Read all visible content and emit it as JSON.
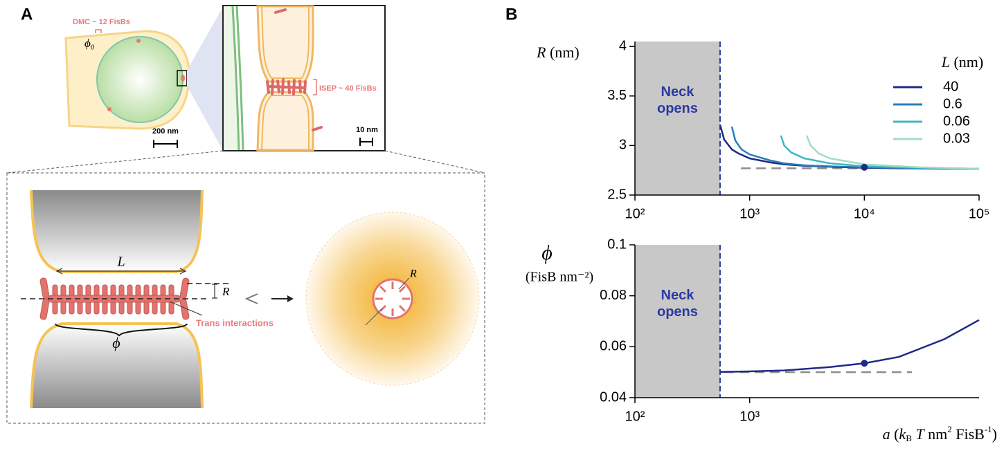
{
  "panel_labels": [
    "A",
    "B"
  ],
  "diagram": {
    "dmc_label": "DMC ~ 12 FisBs",
    "phi0": "ϕ₀",
    "scale_cell": "200 nm",
    "isep_label": "ISEP ~ 40 FisBs",
    "scale_inset": "10 nm",
    "neck_L": "L",
    "neck_R": "R",
    "neck_phi": "ϕ",
    "trans_label": "Trans interactions",
    "pore_R": "R"
  },
  "chart_data": [
    {
      "type": "line",
      "xscale": "log",
      "ylabel": [
        "R",
        " (nm)"
      ],
      "legend_title": [
        "L",
        " (nm)"
      ],
      "xlim": [
        100,
        100000
      ],
      "xticks": [
        {
          "value": 100,
          "label": "10²"
        },
        {
          "value": 1000,
          "label": "10³"
        },
        {
          "value": 10000,
          "label": "10⁴"
        },
        {
          "value": 100000,
          "label": "10⁵"
        }
      ],
      "ylim": [
        2.5,
        4.05
      ],
      "yticks": [
        2.5,
        3,
        3.5,
        4
      ],
      "grid": false,
      "shaded_region": {
        "x": [
          100,
          552
        ],
        "label": "Neck opens",
        "color": "#c8c8c8",
        "edge_color": "#2b3a9e"
      },
      "series": [
        {
          "name": "40",
          "color": "#1f2a86",
          "x": [
            552,
            600,
            700,
            800,
            1000,
            1500,
            2000,
            3000,
            5000,
            10000,
            20000,
            50000,
            100000
          ],
          "values": [
            3.21,
            3.06,
            2.96,
            2.92,
            2.87,
            2.83,
            2.81,
            2.795,
            2.785,
            2.775,
            2.77,
            2.765,
            2.765
          ]
        },
        {
          "name": "0.6",
          "color": "#2a7db8",
          "x": [
            700,
            750,
            850,
            1000,
            1500,
            2000,
            3000,
            5000,
            10000,
            30000,
            100000
          ],
          "values": [
            3.19,
            3.05,
            2.96,
            2.91,
            2.85,
            2.82,
            2.8,
            2.79,
            2.78,
            2.77,
            2.765
          ]
        },
        {
          "name": "0.06",
          "color": "#3fb6c2",
          "x": [
            1875,
            2000,
            2300,
            3000,
            5000,
            10000,
            30000,
            100000
          ],
          "values": [
            3.1,
            3.0,
            2.93,
            2.87,
            2.82,
            2.79,
            2.775,
            2.765
          ]
        },
        {
          "name": "0.03",
          "color": "#a3dcc0",
          "x": [
            3140,
            3400,
            4000,
            5000,
            10000,
            30000,
            100000
          ],
          "values": [
            3.1,
            3.0,
            2.92,
            2.87,
            2.81,
            2.78,
            2.765
          ]
        }
      ],
      "reference_line": {
        "x": [
          840,
          10000
        ],
        "y": 2.77,
        "color": "#8c8c8c"
      },
      "highlight_point": {
        "x": 10000,
        "y": 2.78,
        "color": "#1f2a86"
      }
    },
    {
      "type": "line",
      "xscale": "log",
      "ylabel": [
        "ϕ",
        "(FisB nm⁻²)"
      ],
      "xlabel": [
        "a",
        " (",
        "k",
        "B",
        " T",
        " nm",
        "2",
        " FisB",
        "-1",
        ")"
      ],
      "xlim": [
        100,
        100000
      ],
      "xticks": [
        {
          "value": 100,
          "label": "10²"
        },
        {
          "value": 1000,
          "label": "10³"
        }
      ],
      "ylim": [
        0.04,
        0.1
      ],
      "yticks": [
        0.04,
        0.06,
        0.08,
        0.1
      ],
      "grid": false,
      "shaded_region": {
        "x": [
          100,
          552
        ],
        "label": "Neck opens",
        "color": "#c8c8c8",
        "edge_color": "#2b3a9e"
      },
      "series": [
        {
          "color": "#1f2a86",
          "x": [
            552,
            1000,
            2000,
            5000,
            10000,
            20000,
            50000,
            100000
          ],
          "values": [
            0.0501,
            0.0503,
            0.0507,
            0.052,
            0.0535,
            0.056,
            0.063,
            0.0705
          ]
        }
      ],
      "reference_line": {
        "x": [
          600,
          26000
        ],
        "y": 0.05,
        "color": "#8c8c8c"
      },
      "highlight_point": {
        "x": 10000,
        "y": 0.0535,
        "color": "#1f2a86"
      }
    }
  ]
}
